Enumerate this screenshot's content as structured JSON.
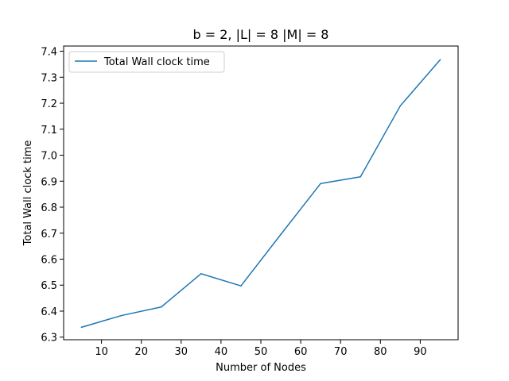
{
  "chart_data": {
    "type": "line",
    "title": "b = 2, |L| = 8 |M| = 8",
    "xlabel": "Number of Nodes",
    "ylabel": "Total Wall clock time",
    "xlim": [
      0.5,
      99.5
    ],
    "ylim": [
      6.29,
      7.42
    ],
    "xticks": [
      10,
      20,
      30,
      40,
      50,
      60,
      70,
      80,
      90
    ],
    "yticks": [
      6.3,
      6.4,
      6.5,
      6.6,
      6.7,
      6.8,
      6.9,
      7.0,
      7.1,
      7.2,
      7.3,
      7.4
    ],
    "grid": false,
    "legend_position": "top-left",
    "series": [
      {
        "name": "Total Wall clock time",
        "color": "#1f77b4",
        "x": [
          5,
          15,
          25,
          35,
          45,
          55,
          65,
          75,
          85,
          95
        ],
        "y": [
          6.338,
          6.383,
          6.416,
          6.544,
          6.497,
          6.695,
          6.891,
          6.917,
          7.19,
          7.367
        ]
      }
    ]
  }
}
